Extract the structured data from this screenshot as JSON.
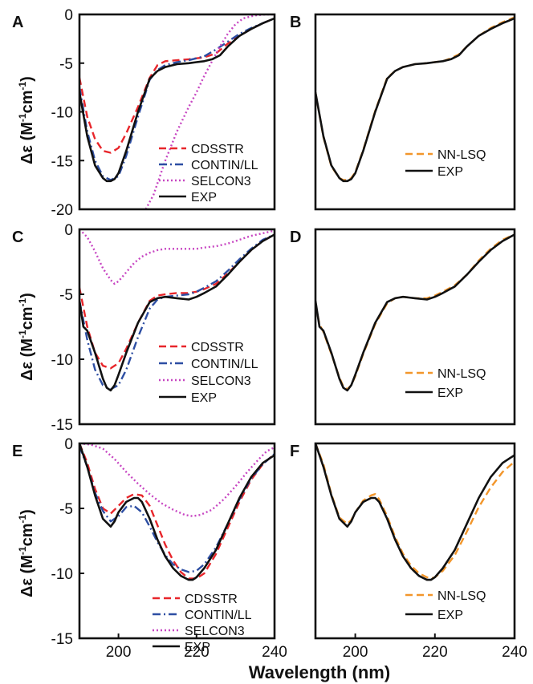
{
  "figure": {
    "xlabel": "Wavelength (nm)",
    "ylabel_main": "Δε (M",
    "ylabel_sup1": "-1",
    "ylabel_mid": "cm",
    "ylabel_sup2": "-1",
    "ylabel_end": ")"
  },
  "colors": {
    "CDSSTR": "#e8262b",
    "CONTIN/LL": "#2d4ea3",
    "SELCON3": "#c746c2",
    "EXP": "#111111",
    "NN-LSQ": "#f2962b"
  },
  "chart_data": [
    {
      "panel_letter": "A",
      "type": "line",
      "xlim": [
        190,
        240
      ],
      "ylim": [
        -20,
        0
      ],
      "xticks": [],
      "yticks": [
        0,
        -5,
        -10,
        -15,
        -20
      ],
      "legend_position": "bottom-right",
      "series": [
        {
          "name": "CDSSTR",
          "style": "dashed",
          "x": [
            190,
            192,
            194,
            196,
            198,
            200,
            202,
            205,
            208,
            210,
            212,
            215,
            218,
            220,
            222,
            225,
            228,
            231,
            234,
            237,
            240
          ],
          "y": [
            -6.5,
            -10.5,
            -12.8,
            -14,
            -14.2,
            -13.7,
            -12.2,
            -9.5,
            -6.5,
            -5.2,
            -4.8,
            -4.7,
            -4.6,
            -4.5,
            -4.4,
            -4,
            -3,
            -2.2,
            -1.5,
            -0.9,
            -0.4
          ]
        },
        {
          "name": "CONTIN/LL",
          "style": "dashdot",
          "x": [
            190,
            192,
            194,
            196,
            198,
            200,
            202,
            205,
            208,
            210,
            212,
            215,
            218,
            220,
            222,
            225,
            228,
            231,
            234,
            237,
            240
          ],
          "y": [
            -7.5,
            -12,
            -15,
            -16.6,
            -17,
            -16.6,
            -14.5,
            -10.5,
            -6.7,
            -5.7,
            -5.2,
            -4.9,
            -4.7,
            -4.5,
            -4.3,
            -3.6,
            -2.8,
            -2,
            -1.4,
            -0.9,
            -0.4
          ]
        },
        {
          "name": "SELCON3",
          "style": "dotted",
          "x": [
            207,
            209,
            212,
            215,
            218,
            220,
            222,
            224,
            226,
            228,
            230,
            232,
            235,
            238,
            240
          ],
          "y": [
            -20,
            -18.5,
            -15,
            -12,
            -9.5,
            -8,
            -6.3,
            -4.8,
            -3.3,
            -2,
            -1,
            -0.4,
            -0.1,
            0,
            0
          ]
        },
        {
          "name": "EXP",
          "style": "solid",
          "x": [
            190,
            192,
            194,
            196,
            197,
            198,
            199,
            200,
            202,
            205,
            208,
            210,
            212,
            215,
            218,
            220,
            222,
            224,
            226,
            228,
            231,
            234,
            237,
            240
          ],
          "y": [
            -8,
            -12.5,
            -15.5,
            -16.8,
            -17.1,
            -17.1,
            -16.9,
            -16.3,
            -14,
            -10,
            -6.6,
            -5.8,
            -5.4,
            -5.1,
            -5,
            -4.9,
            -4.8,
            -4.6,
            -4.2,
            -3.3,
            -2.2,
            -1.5,
            -0.9,
            -0.4
          ]
        }
      ]
    },
    {
      "panel_letter": "B",
      "type": "line",
      "xlim": [
        190,
        240
      ],
      "ylim": [
        -20,
        0
      ],
      "xticks": [],
      "yticks": [],
      "legend_position": "bottom-right",
      "series": [
        {
          "name": "NN-LSQ",
          "style": "dashed",
          "x": [
            190,
            192,
            194,
            196,
            197,
            198,
            199,
            200,
            202,
            205,
            208,
            210,
            212,
            215,
            218,
            220,
            222,
            224,
            226,
            228,
            231,
            234,
            237,
            240
          ],
          "y": [
            -8,
            -12.6,
            -15.6,
            -16.8,
            -17,
            -17,
            -16.8,
            -16.2,
            -13.9,
            -9.9,
            -6.5,
            -5.8,
            -5.4,
            -5.1,
            -5,
            -4.9,
            -4.8,
            -4.5,
            -4.1,
            -3.3,
            -2.2,
            -1.4,
            -0.8,
            -0.3
          ]
        },
        {
          "name": "EXP",
          "style": "solid",
          "x": [
            190,
            192,
            194,
            196,
            197,
            198,
            199,
            200,
            202,
            205,
            208,
            210,
            212,
            215,
            218,
            220,
            222,
            224,
            226,
            228,
            231,
            234,
            237,
            240
          ],
          "y": [
            -8,
            -12.5,
            -15.5,
            -16.8,
            -17.1,
            -17.1,
            -16.9,
            -16.3,
            -14,
            -10,
            -6.6,
            -5.8,
            -5.4,
            -5.1,
            -5,
            -4.9,
            -4.8,
            -4.6,
            -4.2,
            -3.3,
            -2.2,
            -1.5,
            -0.9,
            -0.4
          ]
        }
      ]
    },
    {
      "panel_letter": "C",
      "type": "line",
      "xlim": [
        190,
        240
      ],
      "ylim": [
        -15,
        0
      ],
      "xticks": [],
      "yticks": [
        0,
        -5,
        -10,
        -15
      ],
      "legend_position": "bottom-right",
      "series": [
        {
          "name": "CDSSTR",
          "style": "dashed",
          "x": [
            190,
            192,
            194,
            196,
            198,
            200,
            202,
            205,
            208,
            210,
            212,
            215,
            218,
            220,
            222,
            225,
            228,
            231,
            234,
            237,
            240
          ],
          "y": [
            -4.5,
            -7.5,
            -9.5,
            -10.5,
            -10.7,
            -10.3,
            -9.2,
            -7.2,
            -5.5,
            -5.1,
            -5,
            -4.9,
            -4.9,
            -4.8,
            -4.6,
            -4.2,
            -3.4,
            -2.5,
            -1.6,
            -0.9,
            -0.4
          ]
        },
        {
          "name": "CONTIN/LL",
          "style": "dashdot",
          "x": [
            190,
            192,
            194,
            196,
            198,
            200,
            202,
            205,
            208,
            210,
            212,
            215,
            218,
            220,
            222,
            225,
            228,
            231,
            234,
            237,
            240
          ],
          "y": [
            -5.5,
            -8.5,
            -10.8,
            -12,
            -12.3,
            -12,
            -10.8,
            -8.3,
            -6.1,
            -5.4,
            -5.2,
            -5.1,
            -5,
            -4.8,
            -4.5,
            -4,
            -3.2,
            -2.3,
            -1.5,
            -0.8,
            -0.4
          ]
        },
        {
          "name": "SELCON3",
          "style": "dotted",
          "x": [
            190,
            192,
            194,
            196,
            198,
            199,
            200,
            202,
            204,
            206,
            208,
            210,
            212,
            214,
            216,
            218,
            220,
            222,
            225,
            228,
            231,
            234,
            237,
            240
          ],
          "y": [
            0,
            -0.6,
            -1.7,
            -3,
            -3.9,
            -4.2,
            -4,
            -3.3,
            -2.6,
            -2.1,
            -1.8,
            -1.6,
            -1.5,
            -1.5,
            -1.5,
            -1.5,
            -1.5,
            -1.4,
            -1.3,
            -1.1,
            -0.8,
            -0.5,
            -0.3,
            -0.1
          ]
        },
        {
          "name": "EXP",
          "style": "solid",
          "x": [
            190,
            191,
            192,
            194,
            196,
            197,
            198,
            199,
            200,
            202,
            205,
            208,
            210,
            212,
            215,
            218,
            220,
            222,
            225,
            228,
            231,
            234,
            237,
            240
          ],
          "y": [
            -5.5,
            -7.5,
            -7.8,
            -9.5,
            -11.5,
            -12.2,
            -12.4,
            -12,
            -11.2,
            -9.5,
            -7.2,
            -5.6,
            -5.3,
            -5.2,
            -5.3,
            -5.4,
            -5.2,
            -4.9,
            -4.4,
            -3.5,
            -2.5,
            -1.6,
            -0.9,
            -0.4
          ]
        }
      ]
    },
    {
      "panel_letter": "D",
      "type": "line",
      "xlim": [
        190,
        240
      ],
      "ylim": [
        -15,
        0
      ],
      "xticks": [],
      "yticks": [],
      "legend_position": "bottom-right",
      "series": [
        {
          "name": "NN-LSQ",
          "style": "dashed",
          "x": [
            190,
            191,
            192,
            194,
            196,
            197,
            198,
            199,
            200,
            202,
            205,
            208,
            210,
            212,
            215,
            218,
            220,
            222,
            225,
            228,
            231,
            234,
            237,
            240
          ],
          "y": [
            -5.8,
            -7.3,
            -7.9,
            -9.6,
            -11.4,
            -12.1,
            -12.3,
            -12,
            -11.3,
            -9.6,
            -7.3,
            -5.7,
            -5.3,
            -5.2,
            -5.3,
            -5.3,
            -5.1,
            -4.8,
            -4.3,
            -3.5,
            -2.4,
            -1.5,
            -0.8,
            -0.4
          ]
        },
        {
          "name": "EXP",
          "style": "solid",
          "x": [
            190,
            191,
            192,
            194,
            196,
            197,
            198,
            199,
            200,
            202,
            205,
            208,
            210,
            212,
            215,
            218,
            220,
            222,
            225,
            228,
            231,
            234,
            237,
            240
          ],
          "y": [
            -5.5,
            -7.5,
            -7.8,
            -9.5,
            -11.5,
            -12.2,
            -12.4,
            -12,
            -11.2,
            -9.5,
            -7.2,
            -5.6,
            -5.3,
            -5.2,
            -5.3,
            -5.4,
            -5.2,
            -4.9,
            -4.4,
            -3.5,
            -2.5,
            -1.6,
            -0.9,
            -0.4
          ]
        }
      ]
    },
    {
      "panel_letter": "E",
      "type": "line",
      "xlim": [
        190,
        240
      ],
      "ylim": [
        -15,
        0
      ],
      "xticks": [
        200,
        220,
        240
      ],
      "yticks": [
        0,
        -5,
        -10,
        -15
      ],
      "legend_position": "bottom-center",
      "series": [
        {
          "name": "CDSSTR",
          "style": "dashed",
          "x": [
            190,
            192,
            194,
            196,
            198,
            200,
            202,
            204,
            206,
            208,
            210,
            212,
            214,
            216,
            218,
            220,
            222,
            225,
            228,
            231,
            234,
            237,
            240
          ],
          "y": [
            0,
            -1.5,
            -3.5,
            -5,
            -5.4,
            -4.8,
            -4.2,
            -3.9,
            -4,
            -4.8,
            -6.3,
            -7.8,
            -9,
            -9.9,
            -10.4,
            -10.4,
            -10,
            -8.5,
            -6.5,
            -4.5,
            -2.8,
            -1.6,
            -0.8
          ]
        },
        {
          "name": "CONTIN/LL",
          "style": "dashdot",
          "x": [
            190,
            192,
            194,
            196,
            198,
            200,
            202,
            204,
            206,
            208,
            210,
            212,
            214,
            216,
            218,
            220,
            222,
            225,
            228,
            231,
            234,
            237,
            240
          ],
          "y": [
            -0.2,
            -1.8,
            -3.8,
            -5.2,
            -6,
            -5.6,
            -4.9,
            -4.8,
            -5.3,
            -6.4,
            -7.6,
            -8.6,
            -9.3,
            -9.7,
            -9.9,
            -9.8,
            -9.3,
            -8,
            -6.2,
            -4.3,
            -2.7,
            -1.6,
            -0.8
          ]
        },
        {
          "name": "SELCON3",
          "style": "dotted",
          "x": [
            190,
            193,
            196,
            199,
            202,
            205,
            208,
            211,
            214,
            217,
            219,
            221,
            224,
            227,
            230,
            233,
            236,
            238,
            240
          ],
          "y": [
            0,
            -0.1,
            -0.4,
            -1.2,
            -2.2,
            -3.1,
            -3.9,
            -4.6,
            -5.1,
            -5.5,
            -5.6,
            -5.5,
            -5.1,
            -4.3,
            -3.3,
            -2.2,
            -1.2,
            -0.6,
            -0.3
          ]
        },
        {
          "name": "EXP",
          "style": "solid",
          "x": [
            190,
            192,
            194,
            196,
            198,
            199,
            200,
            202,
            204,
            205,
            206,
            208,
            210,
            212,
            214,
            216,
            218,
            219,
            220,
            222,
            225,
            228,
            231,
            234,
            237,
            240
          ],
          "y": [
            0,
            -1.8,
            -4,
            -5.8,
            -6.4,
            -6,
            -5.3,
            -4.5,
            -4.2,
            -4.2,
            -4.5,
            -5.8,
            -7.4,
            -8.7,
            -9.6,
            -10.2,
            -10.5,
            -10.5,
            -10.3,
            -9.6,
            -8.2,
            -6.2,
            -4.2,
            -2.6,
            -1.5,
            -0.9
          ]
        }
      ]
    },
    {
      "panel_letter": "F",
      "type": "line",
      "xlim": [
        190,
        240
      ],
      "ylim": [
        -15,
        0
      ],
      "xticks": [
        200,
        220,
        240
      ],
      "yticks": [],
      "legend_position": "bottom-right",
      "series": [
        {
          "name": "NN-LSQ",
          "style": "dashed",
          "x": [
            190,
            192,
            194,
            196,
            198,
            199,
            200,
            202,
            204,
            205,
            206,
            208,
            210,
            212,
            214,
            216,
            218,
            219,
            220,
            222,
            225,
            228,
            231,
            234,
            237,
            240
          ],
          "y": [
            0,
            -1.6,
            -3.9,
            -5.7,
            -6.2,
            -5.9,
            -5.3,
            -4.4,
            -4,
            -3.9,
            -4.3,
            -5.6,
            -7.2,
            -8.5,
            -9.4,
            -10,
            -10.3,
            -10.4,
            -10.3,
            -9.8,
            -8.6,
            -6.8,
            -4.9,
            -3.4,
            -2.2,
            -1.4
          ]
        },
        {
          "name": "EXP",
          "style": "solid",
          "x": [
            190,
            192,
            194,
            196,
            198,
            199,
            200,
            202,
            204,
            205,
            206,
            208,
            210,
            212,
            214,
            216,
            218,
            219,
            220,
            222,
            225,
            228,
            231,
            234,
            237,
            240
          ],
          "y": [
            0,
            -1.8,
            -4,
            -5.8,
            -6.4,
            -6,
            -5.3,
            -4.5,
            -4.2,
            -4.2,
            -4.5,
            -5.8,
            -7.4,
            -8.7,
            -9.6,
            -10.2,
            -10.5,
            -10.5,
            -10.3,
            -9.6,
            -8.2,
            -6.2,
            -4.2,
            -2.6,
            -1.5,
            -0.9
          ]
        }
      ]
    }
  ]
}
